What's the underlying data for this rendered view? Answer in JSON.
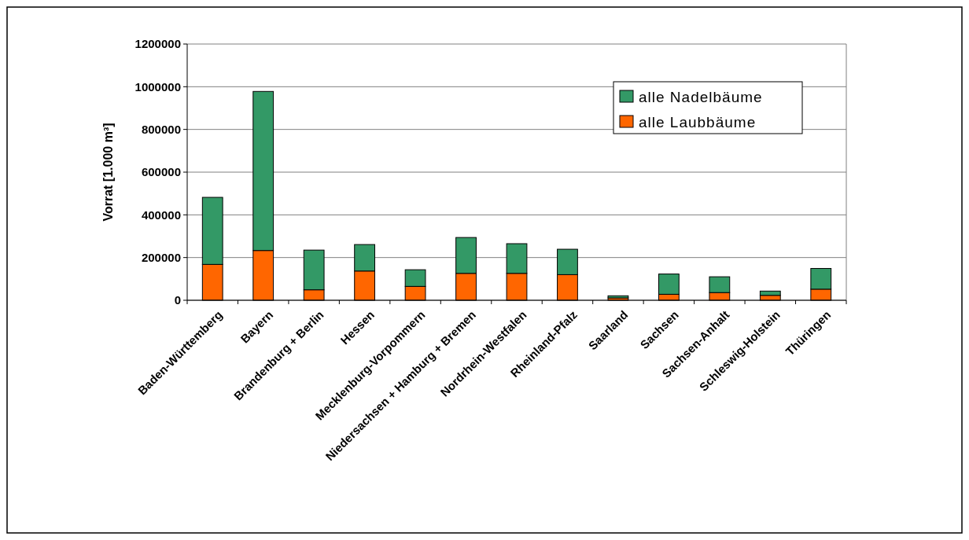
{
  "chart_data": {
    "type": "bar",
    "stacked": true,
    "ylabel": "Vorrat [1.000 m³]",
    "categories": [
      "Baden-Württemberg",
      "Bayern",
      "Brandenburg + Berlin",
      "Hessen",
      "Mecklenburg-Vorpommern",
      "Niedersachsen + Hamburg + Bremen",
      "Nordrhein-Westfalen",
      "Rheinland-Pfalz",
      "Saarland",
      "Sachsen",
      "Sachsen-Anhalt",
      "Schleswig-Holstein",
      "Thüringen"
    ],
    "series": [
      {
        "name": "alle Laubbäume",
        "color": "#ff6600",
        "values": [
          168000,
          233000,
          49000,
          137000,
          65000,
          126000,
          126000,
          120000,
          11000,
          28000,
          36000,
          23000,
          52000
        ]
      },
      {
        "name": "alle Nadelbäume",
        "color": "#339966",
        "values": [
          314000,
          745000,
          186000,
          124000,
          78000,
          168000,
          139000,
          119000,
          10000,
          95000,
          74000,
          20000,
          97000
        ]
      }
    ],
    "ylim": [
      0,
      1200000
    ],
    "yticks": [
      0,
      200000,
      400000,
      600000,
      800000,
      1000000,
      1200000
    ],
    "grid": "y",
    "legend": "top right"
  }
}
